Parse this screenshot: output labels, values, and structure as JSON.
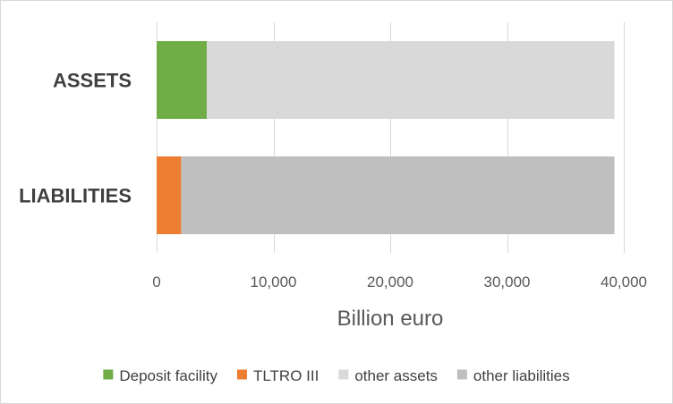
{
  "chart_data": {
    "type": "bar",
    "orientation": "horizontal",
    "stacked": true,
    "categories": [
      "ASSETS",
      "LIABILITIES"
    ],
    "series": [
      {
        "name": "Deposit facility",
        "values": [
          4300,
          0
        ],
        "color": "#70ad47"
      },
      {
        "name": "TLTRO III",
        "values": [
          0,
          2100
        ],
        "color": "#ed7d31"
      },
      {
        "name": "other assets",
        "values": [
          34900,
          0
        ],
        "color": "#d9d9d9"
      },
      {
        "name": "other liabilities",
        "values": [
          0,
          37100
        ],
        "color": "#bfbfbf"
      }
    ],
    "xlabel": "Billion euro",
    "ylabel": "",
    "xlim": [
      0,
      40000
    ],
    "x_ticks": [
      0,
      10000,
      20000,
      30000,
      40000
    ],
    "x_tick_labels": [
      "0",
      "10,000",
      "20,000",
      "30,000",
      "40,000"
    ],
    "grid": "vertical",
    "legend": "bottom"
  }
}
